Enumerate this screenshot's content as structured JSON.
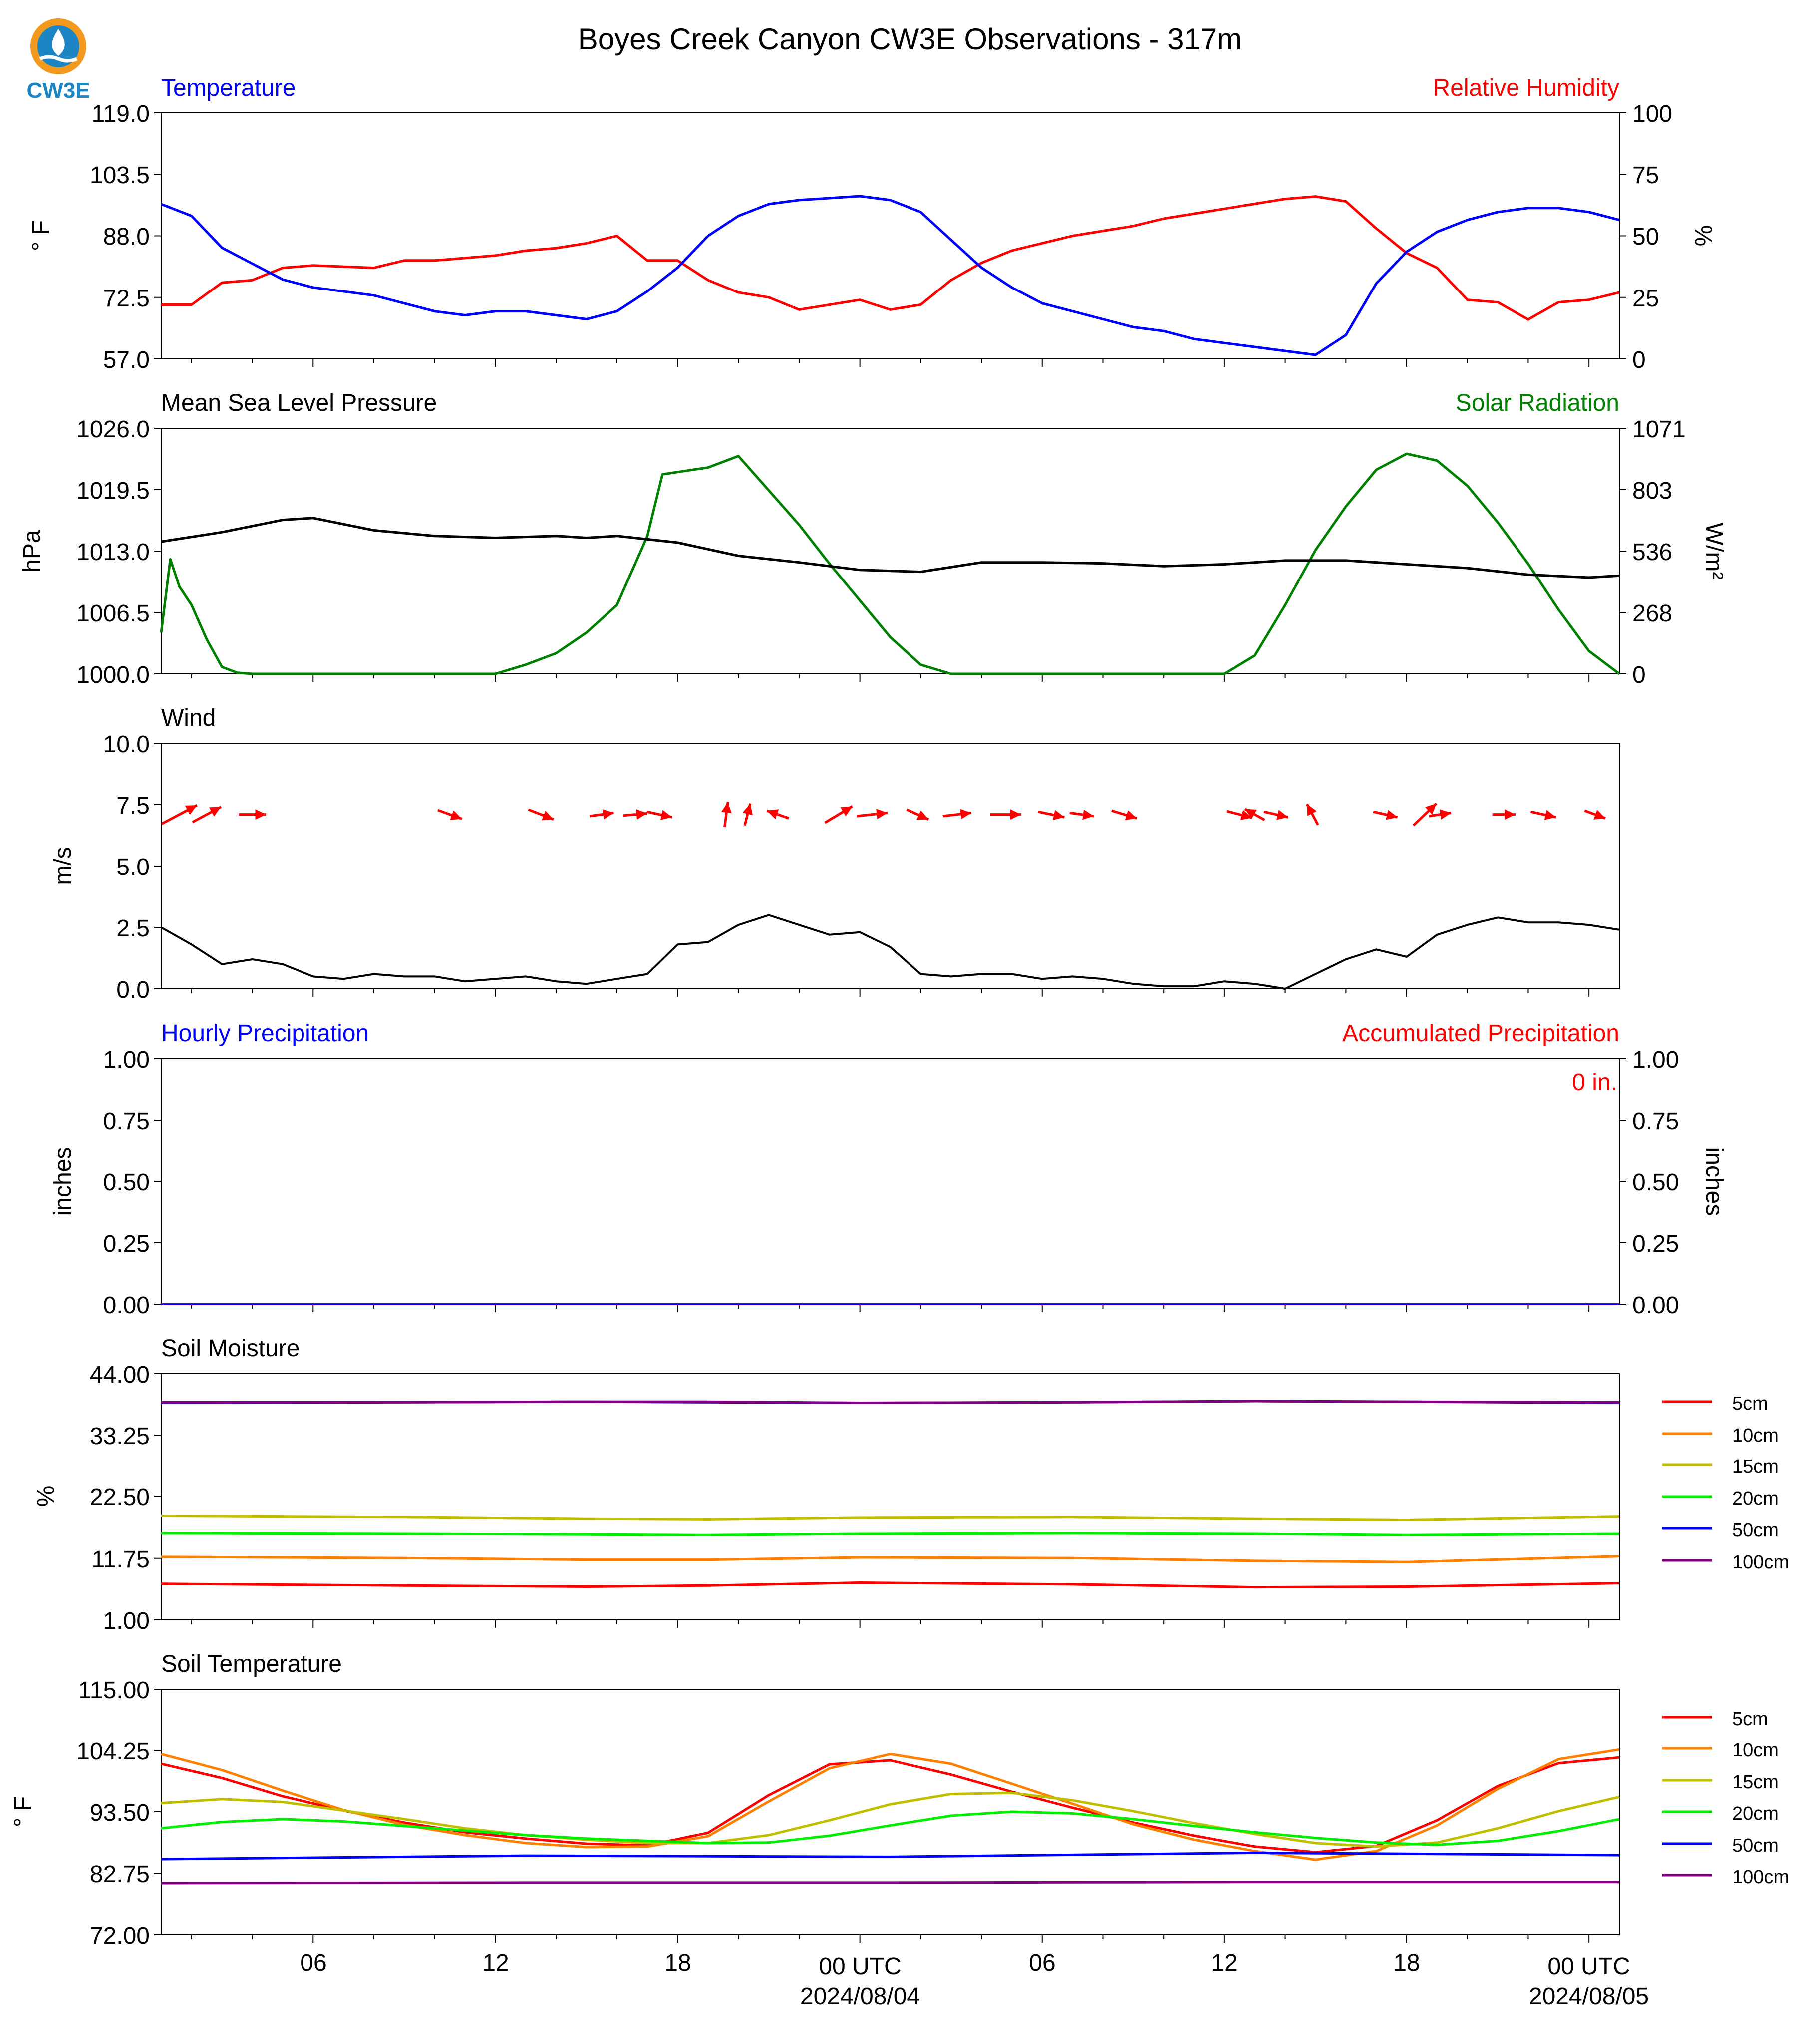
{
  "title": "Boyes Creek Canyon CW3E Observations - 317m",
  "logo": {
    "text": "CW3E",
    "icon": "cw3e-logo-icon",
    "colors": {
      "orange": "#f39a1e",
      "blue": "#1d85c4"
    }
  },
  "x_axis": {
    "ticks": [
      "06",
      "12",
      "18",
      "00 UTC",
      "06",
      "12",
      "18",
      "00 UTC"
    ],
    "dates": [
      "2024/08/04",
      "2024/08/05"
    ]
  },
  "panels": {
    "temp_rh": {
      "left_title": "Temperature",
      "right_title": "Relative Humidity",
      "left_ylabel": "° F",
      "right_ylabel": "%",
      "left_ticks": [
        "119.0",
        "103.5",
        "88.0",
        "72.5",
        "57.0"
      ],
      "right_ticks": [
        "100",
        "75",
        "50",
        "25",
        "0"
      ]
    },
    "pressure_solar": {
      "left_title": "Mean Sea Level Pressure",
      "right_title": "Solar Radiation",
      "left_ylabel": "hPa",
      "right_ylabel": "W/m²",
      "left_ticks": [
        "1026.0",
        "1019.5",
        "1013.0",
        "1006.5",
        "1000.0"
      ],
      "right_ticks": [
        "1071",
        "803",
        "536",
        "268",
        "0"
      ]
    },
    "wind": {
      "left_title": "Wind",
      "left_ylabel": "m/s",
      "left_ticks": [
        "10.0",
        "7.5",
        "5.0",
        "2.5",
        "0.0"
      ]
    },
    "precip": {
      "left_title": "Hourly Precipitation",
      "right_title": "Accumulated Precipitation",
      "left_ylabel": "inches",
      "right_ylabel": "inches",
      "left_ticks": [
        "1.00",
        "0.75",
        "0.50",
        "0.25",
        "0.00"
      ],
      "right_ticks": [
        "1.00",
        "0.75",
        "0.50",
        "0.25",
        "0.00"
      ],
      "annotation": "0 in."
    },
    "soil_moisture": {
      "left_title": "Soil Moisture",
      "left_ylabel": "%",
      "left_ticks": [
        "44.00",
        "33.25",
        "22.50",
        "11.75",
        "1.00"
      ],
      "legend": [
        "5cm",
        "10cm",
        "15cm",
        "20cm",
        "50cm",
        "100cm"
      ]
    },
    "soil_temp": {
      "left_title": "Soil Temperature",
      "left_ylabel": "° F",
      "left_ticks": [
        "115.00",
        "104.25",
        "93.50",
        "82.75",
        "72.00"
      ],
      "legend": [
        "5cm",
        "10cm",
        "15cm",
        "20cm",
        "50cm",
        "100cm"
      ]
    }
  },
  "colors": {
    "temperature": "#0000ff",
    "humidity": "#ff0000",
    "pressure": "#000000",
    "solar": "#008000",
    "wind": "#000000",
    "wind_arrow": "#ff0000",
    "depth": [
      "#ff0000",
      "#ff8000",
      "#bfbf00",
      "#00ee00",
      "#0000ff",
      "#800080"
    ]
  },
  "chart_data": [
    {
      "type": "line",
      "panel": "temp_rh",
      "x_unit": "hours since 2024-08-03 00 UTC",
      "xlim": [
        1,
        49
      ],
      "series": [
        {
          "axis": "left",
          "unit": "°F",
          "ylim": [
            57,
            119
          ],
          "x": [
            1,
            2,
            3,
            4,
            5,
            6,
            8,
            9,
            10,
            11,
            12,
            13,
            14,
            15,
            16,
            17,
            18,
            19,
            20,
            21,
            22,
            24,
            25,
            26,
            27,
            28,
            29,
            30,
            31,
            32,
            33,
            34,
            35,
            36,
            37,
            38,
            39,
            40,
            41,
            42,
            43,
            44,
            45,
            46,
            47,
            48,
            49
          ],
          "values": [
            96,
            93,
            85,
            81,
            77,
            75,
            73,
            71,
            69,
            68,
            69,
            69,
            68,
            67,
            69,
            74,
            80,
            88,
            93,
            96,
            97,
            98,
            97,
            94,
            87,
            80,
            75,
            71,
            69,
            67,
            65,
            64,
            62,
            61,
            60,
            59,
            58,
            63,
            76,
            84,
            89,
            92,
            94,
            95,
            95,
            94,
            92
          ]
        },
        {
          "axis": "right",
          "unit": "%",
          "ylim": [
            0,
            100
          ],
          "x": [
            1,
            2,
            3,
            4,
            5,
            6,
            8,
            9,
            10,
            11,
            12,
            13,
            14,
            15,
            16,
            17,
            18,
            19,
            20,
            21,
            22,
            24,
            25,
            26,
            27,
            28,
            29,
            30,
            31,
            32,
            33,
            34,
            35,
            36,
            37,
            38,
            39,
            40,
            41,
            42,
            43,
            44,
            45,
            46,
            47,
            48,
            49
          ],
          "values": [
            22,
            22,
            31,
            32,
            37,
            38,
            37,
            40,
            40,
            41,
            42,
            44,
            45,
            47,
            50,
            40,
            40,
            32,
            27,
            25,
            20,
            24,
            20,
            22,
            32,
            39,
            44,
            47,
            50,
            52,
            54,
            57,
            59,
            61,
            63,
            65,
            66,
            64,
            53,
            43,
            37,
            24,
            23,
            16,
            23,
            24,
            27
          ]
        }
      ]
    },
    {
      "type": "line",
      "panel": "pressure_solar",
      "x_unit": "hours since 2024-08-03 00 UTC",
      "xlim": [
        1,
        49
      ],
      "series": [
        {
          "axis": "left",
          "unit": "hPa",
          "ylim": [
            1000,
            1026
          ],
          "x": [
            1,
            3,
            5,
            6,
            8,
            10,
            12,
            14,
            15,
            16,
            18,
            20,
            22,
            24,
            26,
            28,
            30,
            32,
            34,
            36,
            38,
            40,
            42,
            44,
            46,
            48,
            49
          ],
          "values": [
            1014.0,
            1015.0,
            1016.3,
            1016.5,
            1015.2,
            1014.6,
            1014.4,
            1014.6,
            1014.4,
            1014.6,
            1013.9,
            1012.5,
            1011.8,
            1011.0,
            1010.8,
            1011.8,
            1011.8,
            1011.7,
            1011.4,
            1011.6,
            1012.0,
            1012.0,
            1011.6,
            1011.2,
            1010.5,
            1010.2,
            1010.4
          ]
        },
        {
          "axis": "right",
          "unit": "W/m²",
          "ylim": [
            0,
            1071
          ],
          "x": [
            1,
            1.3,
            1.6,
            2,
            2.5,
            3,
            3.5,
            4,
            12,
            13,
            14,
            15,
            16,
            17,
            17.5,
            18,
            19,
            20,
            21,
            22,
            23,
            24,
            25,
            26,
            27,
            28,
            29,
            30,
            36,
            37,
            38,
            39,
            40,
            41,
            42,
            43,
            44,
            45,
            46,
            47,
            48,
            49
          ],
          "values": [
            180,
            500,
            380,
            300,
            150,
            30,
            5,
            0,
            0,
            40,
            90,
            180,
            300,
            600,
            870,
            880,
            900,
            950,
            800,
            650,
            480,
            320,
            160,
            40,
            0,
            0,
            0,
            0,
            0,
            80,
            300,
            540,
            730,
            890,
            960,
            930,
            820,
            660,
            480,
            280,
            100,
            0
          ]
        }
      ]
    },
    {
      "type": "line",
      "panel": "wind",
      "x_unit": "hours since 2024-08-03 00 UTC",
      "xlim": [
        1,
        49
      ],
      "unit": "m/s",
      "ylim": [
        0,
        10
      ],
      "series": [
        {
          "name": "speed",
          "x": [
            1,
            2,
            3,
            4,
            5,
            6,
            7,
            8,
            9,
            10,
            11,
            12,
            13,
            14,
            15,
            16,
            17,
            18,
            19,
            20,
            21,
            22,
            23,
            24,
            25,
            26,
            27,
            28,
            29,
            30,
            31,
            32,
            33,
            34,
            35,
            36,
            37,
            38,
            39,
            40,
            41,
            42,
            43,
            44,
            45,
            46,
            47,
            48,
            49
          ],
          "values": [
            2.5,
            1.8,
            1.0,
            1.2,
            1.0,
            0.5,
            0.4,
            0.6,
            0.5,
            0.5,
            0.3,
            0.4,
            0.5,
            0.3,
            0.2,
            0.4,
            0.6,
            1.8,
            1.9,
            2.6,
            3.0,
            2.6,
            2.2,
            2.3,
            1.7,
            0.6,
            0.5,
            0.6,
            0.6,
            0.4,
            0.5,
            0.4,
            0.2,
            0.1,
            0.1,
            0.3,
            0.2,
            0.0,
            0.6,
            1.2,
            1.6,
            1.3,
            2.2,
            2.6,
            2.9,
            2.7,
            2.7,
            2.6,
            2.4
          ]
        },
        {
          "name": "direction_arrows",
          "x": [
            1.6,
            2.5,
            4.0,
            10.5,
            13.5,
            15.5,
            16.6,
            17.4,
            19.6,
            20.3,
            21.3,
            23.3,
            24.4,
            25.9,
            27.2,
            28.8,
            30.3,
            31.3,
            32.7,
            36.5,
            37.0,
            37.7,
            38.9,
            41.3,
            42.6,
            43.1,
            45.2,
            46.5,
            48.2
          ],
          "u": [
            3.2,
            2.6,
            2.5,
            2.2,
            2.3,
            2.2,
            2.2,
            2.3,
            0.3,
            0.5,
            -2.0,
            2.5,
            2.8,
            2.0,
            2.6,
            2.8,
            2.4,
            2.2,
            2.3,
            2.3,
            -1.8,
            2.2,
            -1.0,
            2.2,
            2.1,
            2.0,
            2.1,
            2.3,
            1.9
          ],
          "v": [
            1.7,
            1.4,
            0.0,
            -0.8,
            -0.9,
            0.3,
            0.2,
            -0.5,
            2.3,
            2.0,
            0.7,
            1.5,
            0.3,
            -0.9,
            0.3,
            0.0,
            -0.5,
            -0.3,
            -0.7,
            -0.6,
            1.0,
            -0.5,
            1.9,
            -0.5,
            2.0,
            0.3,
            0.0,
            -0.5,
            -0.7
          ]
        }
      ]
    },
    {
      "type": "line",
      "panel": "precip",
      "x_unit": "hours since 2024-08-03 00 UTC",
      "xlim": [
        1,
        49
      ],
      "unit": "inches",
      "ylim": [
        0,
        1
      ],
      "series": [
        {
          "name": "hourly",
          "x": [
            1,
            49
          ],
          "values": [
            0,
            0
          ]
        },
        {
          "name": "accumulated",
          "x": [
            1,
            49
          ],
          "values": [
            0,
            0
          ]
        }
      ]
    },
    {
      "type": "line",
      "panel": "soil_moisture",
      "x_unit": "hours since 2024-08-03 00 UTC",
      "xlim": [
        1,
        49
      ],
      "unit": "%",
      "ylim": [
        1,
        44
      ],
      "x": [
        1,
        9,
        15,
        19,
        24,
        31,
        37,
        42,
        49
      ],
      "series": [
        {
          "name": "5cm",
          "values": [
            7.3,
            7.0,
            6.8,
            7.0,
            7.5,
            7.2,
            6.7,
            6.8,
            7.4
          ]
        },
        {
          "name": "10cm",
          "values": [
            12.0,
            11.8,
            11.5,
            11.5,
            11.9,
            11.8,
            11.3,
            11.1,
            12.1
          ]
        },
        {
          "name": "15cm",
          "values": [
            19.1,
            18.9,
            18.6,
            18.5,
            18.8,
            18.9,
            18.6,
            18.4,
            19.0
          ]
        },
        {
          "name": "20cm",
          "values": [
            16.1,
            16.0,
            15.9,
            15.8,
            16.0,
            16.1,
            16.0,
            15.8,
            16.0
          ]
        },
        {
          "name": "50cm",
          "values": [
            38.9,
            39.0,
            39.1,
            39.0,
            38.9,
            39.0,
            39.2,
            39.1,
            38.9
          ]
        },
        {
          "name": "100cm",
          "values": [
            39.0,
            39.0,
            39.1,
            39.1,
            38.9,
            39.0,
            39.2,
            39.1,
            39.0
          ]
        }
      ]
    },
    {
      "type": "line",
      "panel": "soil_temp",
      "x_unit": "hours since 2024-08-03 00 UTC",
      "xlim": [
        1,
        49
      ],
      "unit": "°F",
      "ylim": [
        72,
        115
      ],
      "series": [
        {
          "name": "5cm",
          "x": [
            1,
            3,
            5,
            7,
            9,
            11,
            13,
            15,
            17,
            19,
            21,
            23,
            25,
            27,
            29,
            31,
            33,
            35,
            37,
            39,
            41,
            43,
            45,
            47,
            49
          ],
          "values": [
            101.9,
            99.4,
            96.2,
            93.7,
            91.6,
            89.9,
            88.8,
            87.9,
            87.6,
            89.8,
            96.4,
            101.8,
            102.5,
            100.0,
            97.0,
            94.2,
            91.6,
            89.3,
            87.4,
            86.4,
            87.5,
            92.0,
            98.0,
            102.0,
            103.0
          ]
        },
        {
          "name": "10cm",
          "x": [
            1,
            3,
            5,
            7,
            9,
            11,
            13,
            15,
            17,
            19,
            21,
            23,
            25,
            27,
            29,
            31,
            33,
            35,
            37,
            39,
            41,
            43,
            45,
            47,
            49
          ],
          "values": [
            103.6,
            100.8,
            97.2,
            93.8,
            91.2,
            89.4,
            88.0,
            87.3,
            87.4,
            89.2,
            95.3,
            101.1,
            103.6,
            101.9,
            98.4,
            94.9,
            91.3,
            88.6,
            86.6,
            85.1,
            86.6,
            91.1,
            97.5,
            102.7,
            104.4
          ]
        },
        {
          "name": "15cm",
          "x": [
            1,
            3,
            5,
            7,
            9,
            11,
            13,
            15,
            17,
            19,
            21,
            23,
            25,
            27,
            29,
            31,
            33,
            35,
            37,
            39,
            41,
            43,
            45,
            47,
            49
          ],
          "values": [
            95.0,
            95.7,
            95.2,
            93.7,
            92.2,
            90.6,
            89.4,
            88.6,
            88.0,
            88.0,
            89.4,
            92.0,
            94.8,
            96.6,
            96.8,
            95.5,
            93.6,
            91.5,
            89.6,
            88.0,
            87.4,
            88.1,
            90.6,
            93.6,
            96.1
          ]
        },
        {
          "name": "20cm",
          "x": [
            1,
            3,
            5,
            7,
            9,
            11,
            13,
            15,
            17,
            19,
            21,
            23,
            25,
            27,
            29,
            31,
            33,
            35,
            37,
            39,
            41,
            43,
            45,
            47,
            49
          ],
          "values": [
            90.6,
            91.7,
            92.2,
            91.8,
            91.0,
            90.2,
            89.4,
            88.8,
            88.4,
            88.0,
            88.1,
            89.3,
            91.1,
            92.8,
            93.5,
            93.2,
            92.2,
            91.0,
            89.9,
            88.9,
            88.1,
            87.7,
            88.4,
            90.1,
            92.2
          ]
        },
        {
          "name": "50cm",
          "x": [
            1,
            13,
            25,
            37,
            49
          ],
          "values": [
            85.2,
            85.8,
            85.6,
            86.3,
            85.9
          ]
        },
        {
          "name": "100cm",
          "x": [
            1,
            13,
            25,
            37,
            49
          ],
          "values": [
            81.0,
            81.1,
            81.1,
            81.2,
            81.2
          ]
        }
      ]
    }
  ]
}
